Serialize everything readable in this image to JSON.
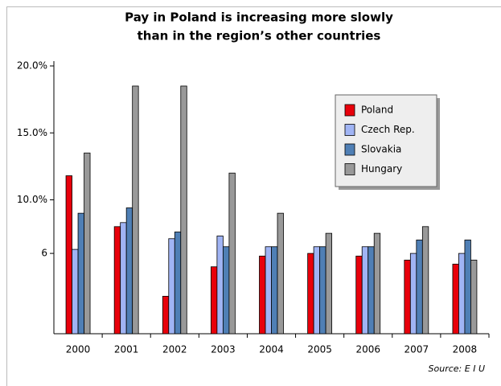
{
  "chart_data": {
    "type": "bar",
    "title": [
      "Pay in Poland is increasing more slowly",
      "than in the region’s other countries"
    ],
    "source": "Source: E I U",
    "categories": [
      "2000",
      "2001",
      "2002",
      "2003",
      "2004",
      "2005",
      "2006",
      "2007",
      "2008"
    ],
    "series": [
      {
        "name": "Poland",
        "color": "#e8000b",
        "values": [
          11.8,
          8.0,
          2.8,
          5.0,
          5.8,
          6.0,
          5.8,
          5.5,
          5.2
        ]
      },
      {
        "name": "Czech Rep.",
        "color": "#a0b4f4",
        "values": [
          6.3,
          8.3,
          7.1,
          7.3,
          6.5,
          6.5,
          6.5,
          6.0,
          6.0
        ]
      },
      {
        "name": "Slovakia",
        "color": "#4f7fb5",
        "values": [
          9.0,
          9.4,
          7.6,
          6.5,
          6.5,
          6.5,
          6.5,
          7.0,
          7.0
        ]
      },
      {
        "name": "Hungary",
        "color": "#999999",
        "values": [
          13.5,
          18.5,
          18.5,
          12.0,
          9.0,
          7.5,
          7.5,
          8.0,
          5.5
        ]
      }
    ],
    "ylim": [
      0,
      20
    ],
    "yticks": [
      6,
      {
        "value": 10,
        "label": "10.0%"
      },
      {
        "value": 15,
        "label": "15.0%"
      },
      {
        "value": 20,
        "label": "20.0%"
      }
    ],
    "legend": "upper right"
  }
}
